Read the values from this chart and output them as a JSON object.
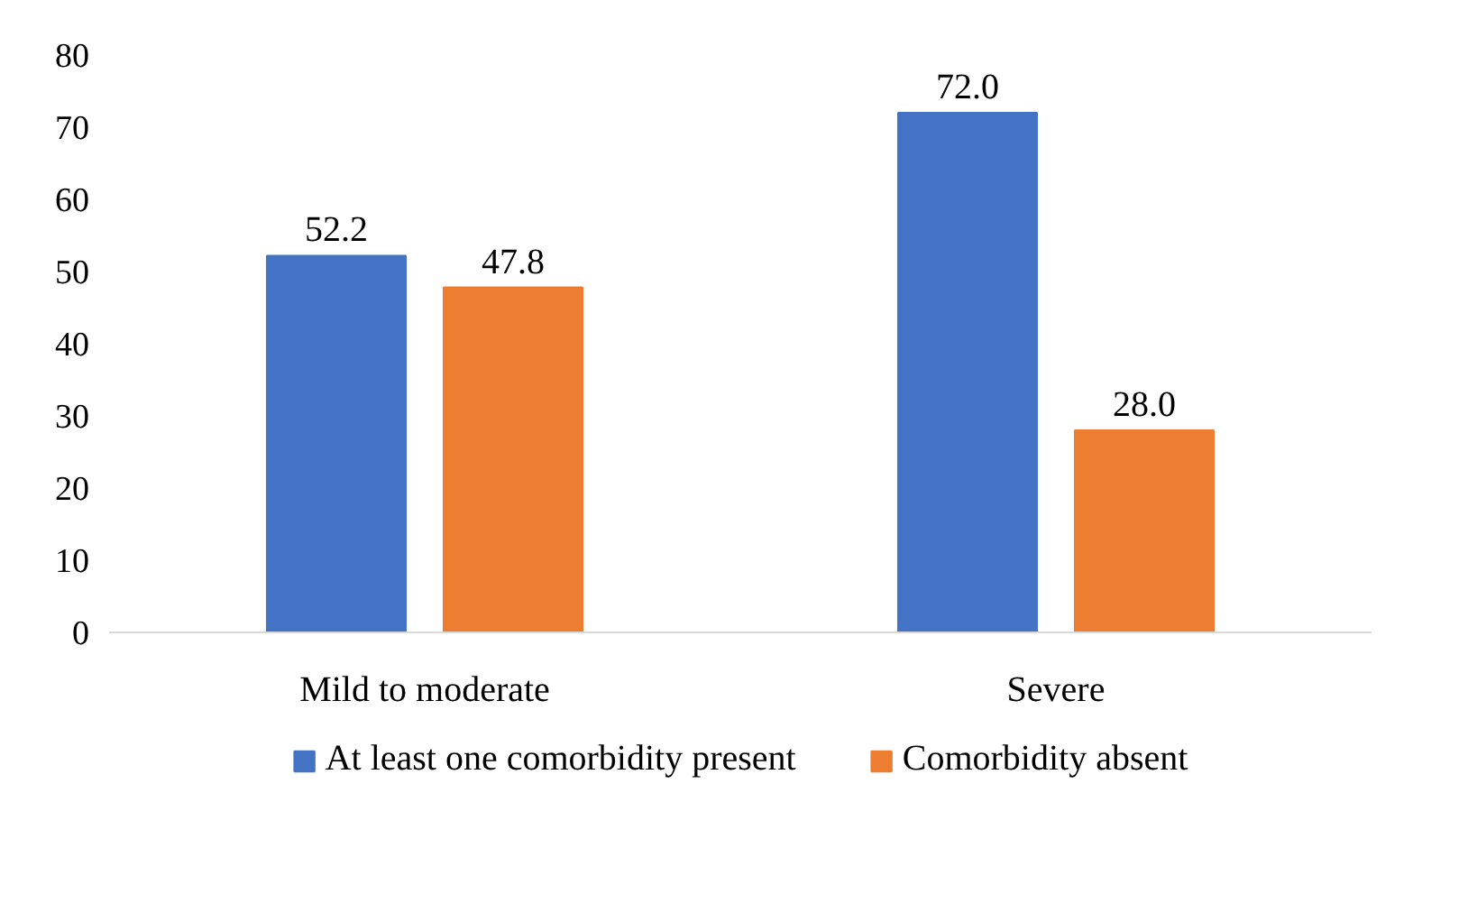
{
  "chart_data": {
    "type": "bar",
    "categories": [
      "Mild to moderate",
      "Severe"
    ],
    "series": [
      {
        "name": "At least one comorbidity present",
        "color": "#4472c4",
        "values": [
          52.2,
          72.0
        ],
        "value_labels": [
          "52.2",
          "72.0"
        ]
      },
      {
        "name": "Comorbidity absent",
        "color": "#ed7d31",
        "values": [
          47.8,
          28.0
        ],
        "value_labels": [
          "47.8",
          "28.0"
        ]
      }
    ],
    "ylim": [
      0,
      80
    ],
    "yticks": [
      0,
      10,
      20,
      30,
      40,
      50,
      60,
      70,
      80
    ],
    "grid": false,
    "legend": "bottom"
  }
}
